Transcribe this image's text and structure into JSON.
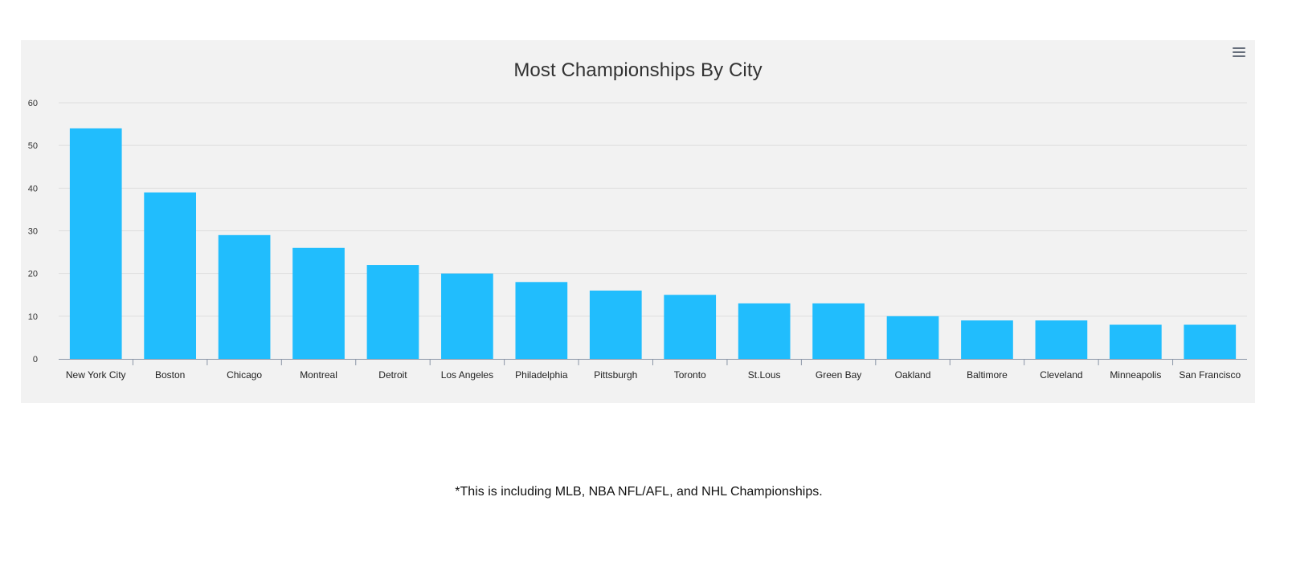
{
  "footnote": "*This is including MLB, NBA NFL/AFL, and NHL Championships.",
  "colors": {
    "bar": "#21bdfd",
    "panel_background": "#f2f2f2",
    "grid": "#dddddd",
    "axis": "#8a95a6"
  },
  "chart_menu": {
    "icon": "hamburger-menu-icon"
  },
  "chart_data": {
    "type": "bar",
    "title": "Most Championships By City",
    "xlabel": "",
    "ylabel": "",
    "categories": [
      "New York City",
      "Boston",
      "Chicago",
      "Montreal",
      "Detroit",
      "Los Angeles",
      "Philadelphia",
      "Pittsburgh",
      "Toronto",
      "St.Lous",
      "Green Bay",
      "Oakland",
      "Baltimore",
      "Cleveland",
      "Minneapolis",
      "San Francisco"
    ],
    "values": [
      54,
      39,
      29,
      26,
      22,
      20,
      18,
      16,
      15,
      13,
      13,
      10,
      9,
      9,
      8,
      8
    ],
    "ylim": [
      0,
      60
    ],
    "yticks": [
      "0",
      "10",
      "20",
      "30",
      "40",
      "50",
      "60"
    ],
    "grid": true,
    "legend": "none"
  }
}
